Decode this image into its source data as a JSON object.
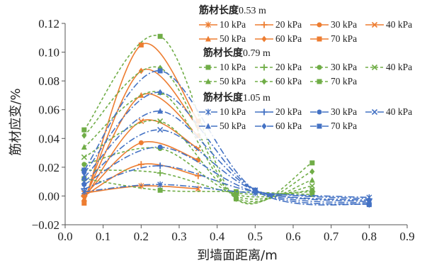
{
  "chart_data": {
    "type": "line",
    "xlabel": "到墙面距离/m",
    "ylabel": "筋材应变/%",
    "xlim": [
      0.0,
      0.9
    ],
    "ylim": [
      -0.02,
      0.12
    ],
    "x_ticks": [
      "0.0",
      "0.1",
      "0.2",
      "0.3",
      "0.4",
      "0.5",
      "0.6",
      "0.7",
      "0.8",
      "0.9"
    ],
    "y_ticks": [
      "−0.02",
      "0.00",
      "0.02",
      "0.04",
      "0.06",
      "0.08",
      "0.10",
      "0.12"
    ],
    "legend_position": "top-right",
    "groups": [
      {
        "title": "筋材长度",
        "length_label": "0.53 m",
        "color": "#ed7d31",
        "line_style": "solid",
        "x": [
          0.05,
          0.2,
          0.35
        ],
        "series": [
          {
            "name": "10 kPa",
            "marker": "star",
            "values": [
              0.002,
              0.007,
              0.005
            ]
          },
          {
            "name": "20 kPa",
            "marker": "plus",
            "values": [
              0.0,
              0.022,
              0.014
            ]
          },
          {
            "name": "30 kPa",
            "marker": "circle",
            "values": [
              0.0,
              0.037,
              0.025
            ]
          },
          {
            "name": "40 kPa",
            "marker": "x",
            "values": [
              -0.002,
              0.052,
              0.033
            ]
          },
          {
            "name": "50 kPa",
            "marker": "triangle",
            "values": [
              -0.002,
              0.07,
              0.042
            ]
          },
          {
            "name": "60 kPa",
            "marker": "diamond",
            "values": [
              -0.003,
              0.087,
              0.048
            ]
          },
          {
            "name": "70 kPa",
            "marker": "square",
            "values": [
              -0.005,
              0.105,
              0.052
            ]
          }
        ]
      },
      {
        "title": "筋材长度",
        "length_label": "0.79 m",
        "color": "#70ad47",
        "line_style": "dash",
        "x": [
          0.05,
          0.25,
          0.45,
          0.65
        ],
        "series": [
          {
            "name": "10 kPa",
            "marker": "square",
            "values": [
              0.012,
              0.004,
              0.003,
              0.001
            ]
          },
          {
            "name": "20 kPa",
            "marker": "plus",
            "values": [
              0.018,
              0.016,
              0.002,
              0.003
            ]
          },
          {
            "name": "30 kPa",
            "marker": "circle",
            "values": [
              0.022,
              0.033,
              0.001,
              0.004
            ]
          },
          {
            "name": "40 kPa",
            "marker": "x",
            "values": [
              0.027,
              0.052,
              0.0,
              0.007
            ]
          },
          {
            "name": "50 kPa",
            "marker": "triangle",
            "values": [
              0.034,
              0.072,
              -0.001,
              0.011
            ]
          },
          {
            "name": "60 kPa",
            "marker": "diamond",
            "values": [
              0.042,
              0.089,
              -0.002,
              0.017
            ]
          },
          {
            "name": "70 kPa",
            "marker": "square",
            "values": [
              0.046,
              0.111,
              -0.002,
              0.023
            ]
          }
        ]
      },
      {
        "title": "筋材长度",
        "length_label": "1.05 m",
        "color": "#4472c4",
        "line_style": "dashdot",
        "x": [
          0.05,
          0.25,
          0.5,
          0.8
        ],
        "series": [
          {
            "name": "10 kPa",
            "marker": "star",
            "values": [
              0.003,
              0.008,
              0.002,
              -0.001
            ]
          },
          {
            "name": "20 kPa",
            "marker": "plus",
            "values": [
              0.005,
              0.021,
              0.003,
              -0.002
            ]
          },
          {
            "name": "30 kPa",
            "marker": "circle",
            "values": [
              0.008,
              0.034,
              0.003,
              -0.003
            ]
          },
          {
            "name": "40 kPa",
            "marker": "x",
            "values": [
              0.01,
              0.046,
              0.004,
              -0.004
            ]
          },
          {
            "name": "50 kPa",
            "marker": "triangle",
            "values": [
              0.013,
              0.059,
              0.004,
              -0.005
            ]
          },
          {
            "name": "60 kPa",
            "marker": "diamond",
            "values": [
              0.016,
              0.072,
              0.004,
              -0.006
            ]
          },
          {
            "name": "70 kPa",
            "marker": "square",
            "values": [
              0.018,
              0.087,
              0.004,
              -0.006
            ]
          }
        ]
      }
    ]
  }
}
